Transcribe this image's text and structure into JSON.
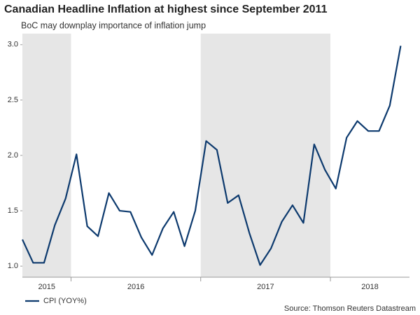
{
  "chart_data": {
    "type": "line",
    "title": "Canadian Headline Inflation at highest since September 2011",
    "subtitle": "BoC may downplay importance of inflation jump",
    "source": "Source: Thomson Reuters Datastream",
    "x": [
      2015.625,
      2015.708,
      2015.792,
      2015.875,
      2015.958,
      2016.042,
      2016.125,
      2016.208,
      2016.292,
      2016.375,
      2016.458,
      2016.542,
      2016.625,
      2016.708,
      2016.792,
      2016.875,
      2016.958,
      2017.042,
      2017.125,
      2017.208,
      2017.292,
      2017.375,
      2017.458,
      2017.542,
      2017.625,
      2017.708,
      2017.792,
      2017.875,
      2017.958,
      2018.042,
      2018.125,
      2018.208,
      2018.292,
      2018.375,
      2018.458,
      2018.542
    ],
    "series": [
      {
        "name": "CPI (YOY%)",
        "color": "#0d3a6e",
        "values": [
          1.24,
          1.03,
          1.03,
          1.37,
          1.61,
          2.01,
          1.36,
          1.27,
          1.66,
          1.5,
          1.49,
          1.26,
          1.1,
          1.34,
          1.49,
          1.18,
          1.5,
          2.13,
          2.05,
          1.57,
          1.64,
          1.3,
          1.01,
          1.16,
          1.4,
          1.55,
          1.39,
          2.1,
          1.87,
          1.7,
          2.16,
          2.31,
          2.22,
          2.22,
          2.45,
          2.99
        ]
      }
    ],
    "xlim": [
      2015.625,
      2018.61
    ],
    "xticks": [
      2016,
      2017,
      2018
    ],
    "year_labels": [
      "2015",
      "2016",
      "2017",
      "2018"
    ],
    "shaded_years": [
      2015,
      2017
    ],
    "shade_color": "#e6e6e6",
    "ylim": [
      0.9,
      3.1
    ],
    "yticks": [
      {
        "value": 1,
        "label": "1.0"
      },
      {
        "value": 1.5,
        "label": "1.5"
      },
      {
        "value": 2,
        "label": "2.0"
      },
      {
        "value": 2.5,
        "label": "2.5"
      },
      {
        "value": 3,
        "label": "3.0"
      }
    ],
    "grid": false,
    "legend": "bottom-left"
  }
}
